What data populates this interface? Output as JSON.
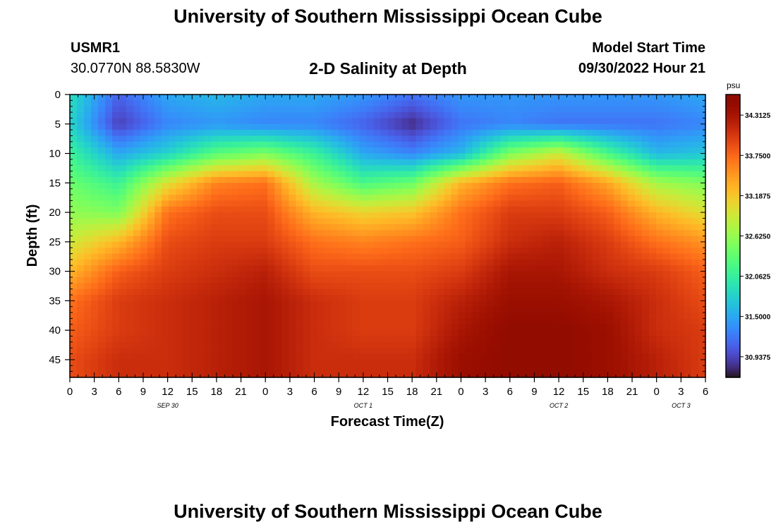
{
  "header": {
    "title": "University of Southern Mississippi Ocean Cube",
    "station_id": "USMR1",
    "station_coords": "30.0770N  88.5830W",
    "subtitle": "2-D Salinity at Depth",
    "model_start_label": "Model Start Time",
    "model_start_value": "09/30/2022 Hour 21"
  },
  "footer": {
    "title": "University of Southern Mississippi Ocean Cube"
  },
  "colors": {
    "colormap": "turbo",
    "axis": "#000000"
  },
  "chart_data": {
    "type": "heatmap",
    "title": "2-D Salinity at Depth",
    "xlabel": "Forecast Time(Z)",
    "ylabel": "Depth (ft)",
    "colorbar_label": "psu",
    "x_range_hours": [
      0,
      78
    ],
    "ylim": [
      0,
      48
    ],
    "y_ticks": [
      0,
      5,
      10,
      15,
      20,
      25,
      30,
      35,
      40,
      45
    ],
    "x_ticks": [
      {
        "hours": 0,
        "label": "0"
      },
      {
        "hours": 3,
        "label": "3"
      },
      {
        "hours": 6,
        "label": "6"
      },
      {
        "hours": 9,
        "label": "9"
      },
      {
        "hours": 12,
        "label": "12"
      },
      {
        "hours": 15,
        "label": "15"
      },
      {
        "hours": 18,
        "label": "18"
      },
      {
        "hours": 21,
        "label": "21"
      },
      {
        "hours": 24,
        "label": "0"
      },
      {
        "hours": 27,
        "label": "3"
      },
      {
        "hours": 30,
        "label": "6"
      },
      {
        "hours": 33,
        "label": "9"
      },
      {
        "hours": 36,
        "label": "12"
      },
      {
        "hours": 39,
        "label": "15"
      },
      {
        "hours": 42,
        "label": "18"
      },
      {
        "hours": 45,
        "label": "21"
      },
      {
        "hours": 48,
        "label": "0"
      },
      {
        "hours": 51,
        "label": "3"
      },
      {
        "hours": 54,
        "label": "6"
      },
      {
        "hours": 57,
        "label": "9"
      },
      {
        "hours": 60,
        "label": "12"
      },
      {
        "hours": 63,
        "label": "15"
      },
      {
        "hours": 66,
        "label": "18"
      },
      {
        "hours": 69,
        "label": "21"
      },
      {
        "hours": 72,
        "label": "0"
      },
      {
        "hours": 75,
        "label": "3"
      },
      {
        "hours": 78,
        "label": "6"
      }
    ],
    "date_labels": [
      {
        "hours": 12,
        "label": "SEP 30"
      },
      {
        "hours": 36,
        "label": "OCT 1"
      },
      {
        "hours": 60,
        "label": "OCT 2"
      },
      {
        "hours": 75,
        "label": "OCT 3"
      }
    ],
    "colorbar": {
      "min": 30.65,
      "max": 34.6,
      "ticks": [
        "34.3125",
        "33.7500",
        "33.1875",
        "32.6250",
        "32.0625",
        "31.5000",
        "30.9375"
      ]
    },
    "depth_levels_ft": [
      0,
      5,
      10,
      15,
      20,
      25,
      30,
      35,
      40,
      45,
      48
    ],
    "time_nodes_hours": [
      0,
      6,
      12,
      18,
      24,
      30,
      36,
      42,
      48,
      54,
      60,
      66,
      72,
      78
    ],
    "salinity_psu": [
      [
        31.9,
        31.1,
        31.5,
        31.6,
        31.5,
        31.5,
        31.4,
        31.2,
        31.4,
        31.4,
        31.4,
        31.4,
        31.4,
        31.5
      ],
      [
        31.8,
        30.9,
        31.3,
        31.4,
        31.3,
        31.3,
        31.1,
        30.8,
        31.2,
        31.3,
        31.2,
        31.2,
        31.2,
        31.3
      ],
      [
        32.1,
        31.5,
        31.8,
        32.3,
        32.5,
        32.1,
        31.5,
        31.3,
        31.6,
        32.5,
        32.9,
        32.2,
        31.6,
        31.7
      ],
      [
        32.4,
        32.1,
        33.0,
        33.6,
        33.7,
        32.7,
        32.2,
        32.4,
        33.3,
        33.7,
        33.8,
        33.4,
        32.7,
        32.5
      ],
      [
        32.6,
        32.5,
        33.7,
        33.9,
        33.9,
        33.3,
        33.1,
        33.2,
        33.7,
        34.0,
        34.0,
        33.8,
        33.3,
        33.0
      ],
      [
        32.9,
        33.3,
        33.9,
        34.0,
        34.0,
        33.7,
        33.6,
        33.7,
        33.8,
        34.1,
        34.2,
        34.0,
        33.7,
        33.5
      ],
      [
        33.3,
        33.8,
        34.0,
        34.1,
        34.2,
        33.9,
        33.9,
        33.9,
        34.0,
        34.3,
        34.3,
        34.1,
        34.0,
        33.8
      ],
      [
        33.7,
        34.0,
        34.1,
        34.2,
        34.3,
        34.1,
        34.0,
        34.0,
        34.2,
        34.4,
        34.4,
        34.3,
        34.1,
        33.9
      ],
      [
        33.8,
        34.0,
        34.1,
        34.2,
        34.3,
        34.1,
        34.0,
        34.0,
        34.3,
        34.5,
        34.5,
        34.4,
        34.1,
        34.0
      ],
      [
        33.9,
        34.1,
        34.1,
        34.2,
        34.3,
        34.1,
        34.1,
        34.1,
        34.4,
        34.5,
        34.5,
        34.4,
        34.2,
        34.0
      ],
      [
        33.9,
        34.1,
        34.1,
        34.2,
        34.3,
        34.1,
        34.1,
        34.1,
        34.4,
        34.5,
        34.5,
        34.4,
        34.2,
        34.0
      ]
    ]
  }
}
